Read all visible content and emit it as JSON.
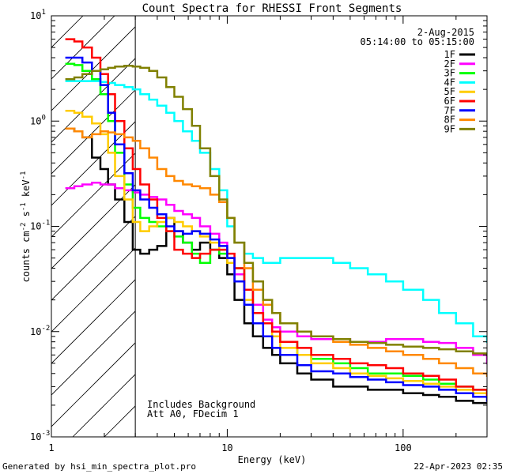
{
  "chart_data": {
    "type": "line",
    "title": "Count Spectra for RHESSI Front Segments",
    "xlabel": "Energy (keV)",
    "ylabel": "counts cm",
    "ylabel_sup1": "-2",
    "ylabel_mid": " s",
    "ylabel_sup2": "-1",
    "ylabel_tail": " keV",
    "ylabel_sup3": "-1",
    "x_scale": "log",
    "y_scale": "log",
    "xlim": [
      1,
      300
    ],
    "ylim": [
      0.001,
      10
    ],
    "x_tick_labels": [
      {
        "value": 10,
        "label": "10"
      },
      {
        "value": 100,
        "label": "100"
      }
    ],
    "y_tick_labels": [
      {
        "value": 10,
        "base": "10",
        "exp": "1"
      },
      {
        "value": 1,
        "base": "10",
        "exp": "0"
      },
      {
        "value": 0.1,
        "base": "10",
        "exp": "-1"
      },
      {
        "value": 0.01,
        "base": "10",
        "exp": "-2"
      },
      {
        "value": 0.001,
        "base": "10",
        "exp": "-3"
      }
    ],
    "x_first_label": "1",
    "hatched_region_xmax": 3,
    "legend_date": "2-Aug-2015",
    "legend_time": "05:14:00 to 05:15:00",
    "annotations": [
      "Includes Background",
      "Att A0, FDecim 1"
    ],
    "footer_left": "Generated by hsi_min_spectra_plot.pro",
    "footer_right": "22-Apr-2023 02:35",
    "series": [
      {
        "name": "1F",
        "color": "#000000",
        "x": [
          1.2,
          1.35,
          1.5,
          1.7,
          1.9,
          2.1,
          2.3,
          2.6,
          2.9,
          3.2,
          3.6,
          4,
          4.5,
          5,
          5.6,
          6.3,
          7,
          8,
          9,
          10,
          11,
          12.5,
          14,
          16,
          18,
          20,
          25,
          30,
          40,
          50,
          63,
          80,
          100,
          130,
          160,
          200,
          250,
          300
        ],
        "y": [
          0.85,
          0.8,
          0.7,
          0.45,
          0.35,
          0.25,
          0.18,
          0.11,
          0.06,
          0.055,
          0.06,
          0.065,
          0.12,
          0.09,
          0.07,
          0.06,
          0.07,
          0.06,
          0.05,
          0.035,
          0.02,
          0.012,
          0.009,
          0.007,
          0.006,
          0.005,
          0.004,
          0.0035,
          0.003,
          0.003,
          0.0028,
          0.0028,
          0.0026,
          0.0025,
          0.0024,
          0.0022,
          0.0021,
          0.0021
        ]
      },
      {
        "name": "2F",
        "color": "#ff00ff",
        "x": [
          1.2,
          1.35,
          1.5,
          1.7,
          1.9,
          2.1,
          2.3,
          2.6,
          2.9,
          3.2,
          3.6,
          4,
          4.5,
          5,
          5.6,
          6.3,
          7,
          8,
          9,
          10,
          11,
          12.5,
          14,
          16,
          18,
          20,
          25,
          30,
          40,
          50,
          63,
          80,
          100,
          130,
          160,
          200,
          250,
          300
        ],
        "y": [
          0.23,
          0.24,
          0.25,
          0.26,
          0.25,
          0.25,
          0.23,
          0.22,
          0.21,
          0.2,
          0.19,
          0.18,
          0.16,
          0.14,
          0.13,
          0.12,
          0.1,
          0.085,
          0.07,
          0.05,
          0.035,
          0.025,
          0.018,
          0.013,
          0.011,
          0.01,
          0.009,
          0.0085,
          0.0085,
          0.008,
          0.008,
          0.0085,
          0.0085,
          0.008,
          0.0078,
          0.007,
          0.006,
          0.005
        ]
      },
      {
        "name": "3F",
        "color": "#00ff00",
        "x": [
          1.2,
          1.35,
          1.5,
          1.7,
          1.9,
          2.1,
          2.3,
          2.6,
          2.9,
          3.2,
          3.6,
          4,
          4.5,
          5,
          5.6,
          6.3,
          7,
          8,
          9,
          10,
          11,
          12.5,
          14,
          16,
          18,
          20,
          25,
          30,
          40,
          50,
          63,
          80,
          100,
          130,
          160,
          200,
          250,
          300
        ],
        "y": [
          3.5,
          3.4,
          3.0,
          2.5,
          1.8,
          1.0,
          0.5,
          0.25,
          0.15,
          0.12,
          0.11,
          0.1,
          0.09,
          0.08,
          0.07,
          0.055,
          0.045,
          0.06,
          0.055,
          0.05,
          0.04,
          0.025,
          0.015,
          0.012,
          0.01,
          0.008,
          0.006,
          0.0055,
          0.005,
          0.0045,
          0.004,
          0.004,
          0.0038,
          0.0035,
          0.0032,
          0.003,
          0.0028,
          0.0025
        ]
      },
      {
        "name": "4F",
        "color": "#00ffff",
        "x": [
          1.2,
          1.35,
          1.5,
          1.7,
          1.9,
          2.1,
          2.3,
          2.6,
          2.9,
          3.2,
          3.6,
          4,
          4.5,
          5,
          5.6,
          6.3,
          7,
          8,
          9,
          10,
          11,
          12.5,
          14,
          16,
          18,
          20,
          25,
          30,
          40,
          50,
          63,
          80,
          100,
          130,
          160,
          200,
          250,
          300
        ],
        "y": [
          2.4,
          2.4,
          2.4,
          2.4,
          2.35,
          2.3,
          2.2,
          2.1,
          2.0,
          1.8,
          1.6,
          1.4,
          1.2,
          1.0,
          0.8,
          0.65,
          0.5,
          0.35,
          0.22,
          0.1,
          0.07,
          0.055,
          0.05,
          0.045,
          0.045,
          0.05,
          0.05,
          0.05,
          0.045,
          0.04,
          0.035,
          0.03,
          0.025,
          0.02,
          0.015,
          0.012,
          0.009,
          0.008
        ]
      },
      {
        "name": "5F",
        "color": "#ffcc00",
        "x": [
          1.2,
          1.35,
          1.5,
          1.7,
          1.9,
          2.1,
          2.3,
          2.6,
          2.9,
          3.2,
          3.6,
          4,
          4.5,
          5,
          5.6,
          6.3,
          7,
          8,
          9,
          10,
          11,
          12.5,
          14,
          16,
          18,
          20,
          25,
          30,
          40,
          50,
          63,
          80,
          100,
          130,
          160,
          200,
          250,
          300
        ],
        "y": [
          1.25,
          1.2,
          1.1,
          0.95,
          0.75,
          0.5,
          0.3,
          0.18,
          0.11,
          0.09,
          0.1,
          0.11,
          0.12,
          0.11,
          0.1,
          0.09,
          0.08,
          0.07,
          0.06,
          0.045,
          0.03,
          0.02,
          0.015,
          0.012,
          0.009,
          0.007,
          0.006,
          0.005,
          0.0045,
          0.004,
          0.0038,
          0.0036,
          0.0034,
          0.0032,
          0.003,
          0.0028,
          0.0026,
          0.0024
        ]
      },
      {
        "name": "6F",
        "color": "#ff0000",
        "x": [
          1.2,
          1.35,
          1.5,
          1.7,
          1.9,
          2.1,
          2.3,
          2.6,
          2.9,
          3.2,
          3.6,
          4,
          4.5,
          5,
          5.6,
          6.3,
          7,
          8,
          9,
          10,
          11,
          12.5,
          14,
          16,
          18,
          20,
          25,
          30,
          40,
          50,
          63,
          80,
          100,
          130,
          160,
          200,
          250,
          300
        ],
        "y": [
          6.0,
          5.7,
          5.0,
          4.0,
          2.8,
          1.8,
          1.0,
          0.55,
          0.35,
          0.25,
          0.18,
          0.12,
          0.09,
          0.06,
          0.055,
          0.05,
          0.055,
          0.06,
          0.06,
          0.055,
          0.04,
          0.025,
          0.015,
          0.012,
          0.01,
          0.008,
          0.007,
          0.006,
          0.0055,
          0.005,
          0.0048,
          0.0045,
          0.004,
          0.0038,
          0.0035,
          0.003,
          0.0028,
          0.0025
        ]
      },
      {
        "name": "7F",
        "color": "#0000ff",
        "x": [
          1.2,
          1.35,
          1.5,
          1.7,
          1.9,
          2.1,
          2.3,
          2.6,
          2.9,
          3.2,
          3.6,
          4,
          4.5,
          5,
          5.6,
          6.3,
          7,
          8,
          9,
          10,
          11,
          12.5,
          14,
          16,
          18,
          20,
          25,
          30,
          40,
          50,
          63,
          80,
          100,
          130,
          160,
          200,
          250,
          300
        ],
        "y": [
          4.0,
          4.0,
          3.6,
          3.0,
          2.2,
          1.2,
          0.6,
          0.32,
          0.22,
          0.18,
          0.15,
          0.13,
          0.1,
          0.09,
          0.085,
          0.09,
          0.085,
          0.075,
          0.065,
          0.05,
          0.03,
          0.018,
          0.012,
          0.009,
          0.007,
          0.006,
          0.0048,
          0.0042,
          0.004,
          0.0037,
          0.0035,
          0.0033,
          0.0031,
          0.003,
          0.0028,
          0.0026,
          0.0024,
          0.0022
        ]
      },
      {
        "name": "8F",
        "color": "#ff8800",
        "x": [
          1.2,
          1.35,
          1.5,
          1.7,
          1.9,
          2.1,
          2.3,
          2.6,
          2.9,
          3.2,
          3.6,
          4,
          4.5,
          5,
          5.6,
          6.3,
          7,
          8,
          9,
          10,
          11,
          12.5,
          14,
          16,
          18,
          20,
          25,
          30,
          40,
          50,
          63,
          80,
          100,
          130,
          160,
          200,
          250,
          300
        ],
        "y": [
          0.85,
          0.8,
          0.7,
          0.75,
          0.8,
          0.78,
          0.75,
          0.7,
          0.65,
          0.55,
          0.45,
          0.35,
          0.3,
          0.27,
          0.25,
          0.24,
          0.23,
          0.2,
          0.17,
          0.12,
          0.07,
          0.04,
          0.025,
          0.018,
          0.015,
          0.012,
          0.01,
          0.009,
          0.008,
          0.0075,
          0.007,
          0.0065,
          0.006,
          0.0055,
          0.005,
          0.0045,
          0.004,
          0.0038
        ]
      },
      {
        "name": "9F",
        "color": "#808000",
        "x": [
          1.2,
          1.35,
          1.5,
          1.7,
          1.9,
          2.1,
          2.3,
          2.6,
          2.9,
          3.2,
          3.6,
          4,
          4.5,
          5,
          5.6,
          6.3,
          7,
          8,
          9,
          10,
          11,
          12.5,
          14,
          16,
          18,
          20,
          25,
          30,
          40,
          50,
          63,
          80,
          100,
          130,
          160,
          200,
          250,
          300
        ],
        "y": [
          2.5,
          2.6,
          2.8,
          3.0,
          3.1,
          3.2,
          3.3,
          3.35,
          3.3,
          3.2,
          3.0,
          2.6,
          2.1,
          1.7,
          1.3,
          0.9,
          0.55,
          0.3,
          0.18,
          0.12,
          0.07,
          0.045,
          0.03,
          0.02,
          0.015,
          0.012,
          0.01,
          0.009,
          0.0085,
          0.008,
          0.0078,
          0.0075,
          0.0072,
          0.007,
          0.0068,
          0.0065,
          0.0062,
          0.006
        ]
      }
    ]
  }
}
